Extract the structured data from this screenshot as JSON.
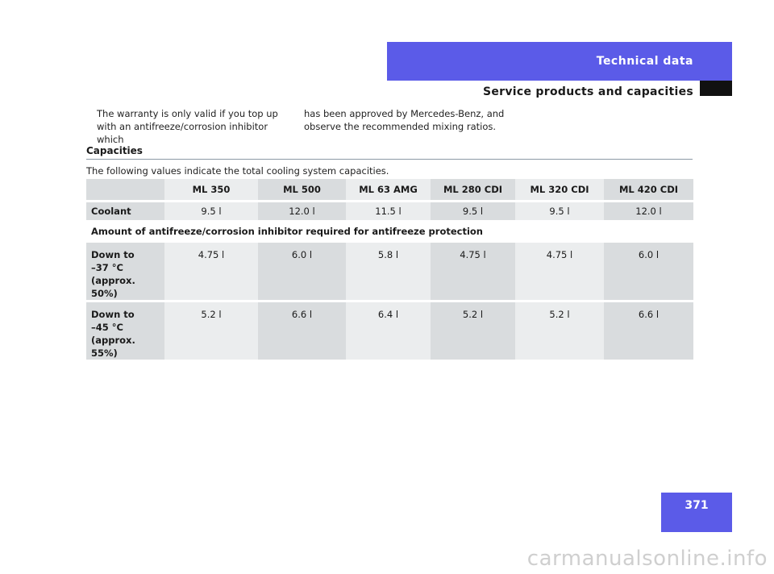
{
  "header": {
    "tab_label": "Technical data",
    "section_title": "Service products and capacities"
  },
  "intro": {
    "col1": "The warranty is only valid if you top up with an antifreeze/corrosion inhibitor which",
    "col2": "has been approved by Mercedes-Benz, and observe the recommended mixing ratios."
  },
  "capacities": {
    "heading": "Capacities",
    "description": "The following values indicate the total cooling system capacities.",
    "models": [
      "ML 350",
      "ML 500",
      "ML 63 AMG",
      "ML 280 CDI",
      "ML 320 CDI",
      "ML 420 CDI"
    ],
    "coolant": {
      "label": "Coolant",
      "values": [
        "9.5 l",
        "12.0 l",
        "11.5 l",
        "9.5 l",
        "9.5 l",
        "12.0 l"
      ]
    },
    "amount_heading": "Amount of antifreeze/corrosion inhibitor required for antifreeze protection",
    "rows": [
      {
        "label_lines": [
          "Down to",
          "–37 °C",
          "(approx. 50%)"
        ],
        "values": [
          "4.75 l",
          "6.0 l",
          "5.8 l",
          "4.75 l",
          "4.75 l",
          "6.0 l"
        ]
      },
      {
        "label_lines": [
          "Down to",
          "–45 °C",
          "(approx. 55%)"
        ],
        "values": [
          "5.2 l",
          "6.6 l",
          "6.4 l",
          "5.2 l",
          "5.2 l",
          "6.6 l"
        ]
      }
    ]
  },
  "page_number": "371",
  "watermark": "carmanualsonline.info"
}
